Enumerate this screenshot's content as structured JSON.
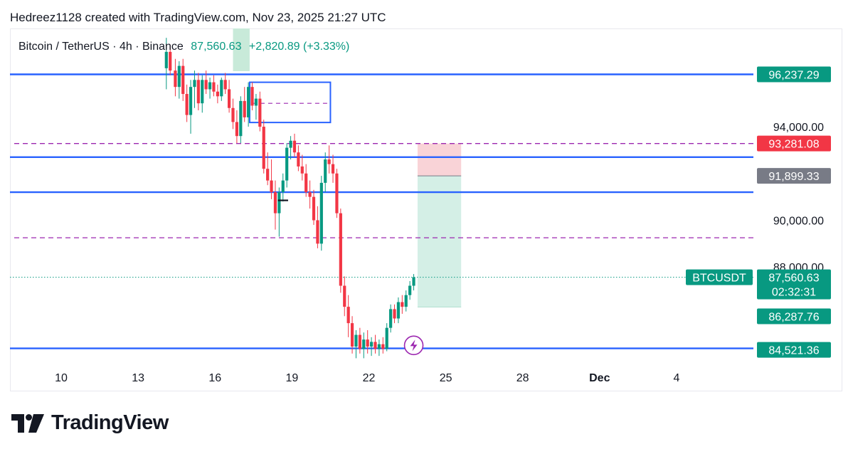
{
  "header": {
    "attribution": "Hedreez1128 created with TradingView.com, Nov 23, 2025 21:27 UTC"
  },
  "legend": {
    "symbol": "Bitcoin / TetherUS · 4h · Binance",
    "last_price": "87,560.63",
    "change": "+2,820.89 (+3.33%)"
  },
  "footer": {
    "brand": "TradingView"
  },
  "colors": {
    "up": "#089981",
    "down": "#f23645",
    "level_line": "#2962ff",
    "dashed_line": "#9c27b0",
    "stop_zone": "#f9d3d7",
    "target_zone": "#d4efe6",
    "highlight": "#c8ead9"
  },
  "chart_data": {
    "type": "candlestick",
    "symbol": "BTCUSDT",
    "interval": "4h",
    "exchange": "Binance",
    "x_axis": {
      "ticks": [
        "10",
        "13",
        "16",
        "19",
        "22",
        "25",
        "28",
        "Dec",
        "4"
      ],
      "start_day": 8,
      "end_day": 37
    },
    "y_axis": {
      "range": [
        83900,
        98200
      ],
      "ticks": [
        "94,000.00",
        "90,000.00",
        "88,000.00"
      ],
      "labels": [
        {
          "text": "96,237.29",
          "value": 96237.29,
          "kind": "level"
        },
        {
          "text": "93,281.08",
          "value": 93281.08,
          "kind": "stop"
        },
        {
          "text": "91,899.33",
          "value": 91899.33,
          "kind": "entry"
        },
        {
          "text": "BTCUSDT",
          "value": 87560.63,
          "kind": "symbol"
        },
        {
          "text": "87,560.63",
          "value": 87560.63,
          "kind": "last"
        },
        {
          "text": "02:32:31",
          "value": 87560.63,
          "kind": "countdown"
        },
        {
          "text": "86,287.76",
          "value": 86287.76,
          "kind": "target"
        },
        {
          "text": "84,521.36",
          "value": 84521.36,
          "kind": "level"
        }
      ]
    },
    "horizontal_levels": [
      96237.29,
      92700,
      91200,
      84521.36
    ],
    "dashed_levels": [
      93281.08,
      89250
    ],
    "zone_box": {
      "day_start": 17.35,
      "day_end": 20.5,
      "price_top": 95900,
      "price_bottom": 94180
    },
    "zone_midline": 95000,
    "position_tool": {
      "day_start": 23.9,
      "day_end": 25.6,
      "stop": 93281.08,
      "entry": 91899.33,
      "target": 86287.76
    },
    "highlight_column": {
      "day_start": 16.7,
      "day_end": 17.35
    },
    "last_price_line": 87560.63,
    "candles": [
      [
        14.1,
        96500,
        97800,
        95600,
        97200
      ],
      [
        14.25,
        97200,
        97500,
        96200,
        96400
      ],
      [
        14.45,
        96400,
        96900,
        95300,
        95700
      ],
      [
        14.6,
        95700,
        96800,
        95200,
        96600
      ],
      [
        14.75,
        96600,
        96900,
        95100,
        95400
      ],
      [
        14.9,
        95400,
        95800,
        94200,
        94500
      ],
      [
        15.05,
        94500,
        96000,
        93700,
        95700
      ],
      [
        15.2,
        95700,
        96400,
        94800,
        96000
      ],
      [
        15.35,
        96000,
        96300,
        94700,
        95000
      ],
      [
        15.5,
        95000,
        96200,
        94600,
        96000
      ],
      [
        15.65,
        96000,
        96400,
        95400,
        95600
      ],
      [
        15.8,
        95600,
        96100,
        95200,
        95900
      ],
      [
        15.95,
        95900,
        96200,
        95300,
        95500
      ],
      [
        16.1,
        95500,
        95800,
        95000,
        95300
      ],
      [
        16.25,
        95300,
        96100,
        95100,
        96000
      ],
      [
        16.4,
        96000,
        96300,
        95400,
        95600
      ],
      [
        16.55,
        95600,
        96000,
        94600,
        94800
      ],
      [
        16.7,
        94800,
        95200,
        93900,
        94200
      ],
      [
        16.85,
        94200,
        94700,
        93300,
        93600
      ],
      [
        17.0,
        93600,
        95300,
        93300,
        95100
      ],
      [
        17.15,
        95100,
        95700,
        94200,
        94400
      ],
      [
        17.3,
        94400,
        95900,
        94000,
        95700
      ],
      [
        17.45,
        95700,
        95900,
        94700,
        94900
      ],
      [
        17.6,
        94900,
        95400,
        94300,
        95200
      ],
      [
        17.75,
        95200,
        95500,
        93800,
        94000
      ],
      [
        17.9,
        94000,
        94300,
        92000,
        92200
      ],
      [
        18.05,
        92200,
        92900,
        91500,
        91700
      ],
      [
        18.2,
        91700,
        92600,
        90900,
        91200
      ],
      [
        18.35,
        91200,
        91700,
        89600,
        90300
      ],
      [
        18.5,
        90300,
        91400,
        89300,
        91200
      ],
      [
        18.65,
        91200,
        92000,
        90800,
        91700
      ],
      [
        18.8,
        91700,
        93300,
        91400,
        93100
      ],
      [
        18.95,
        93100,
        93600,
        92600,
        93400
      ],
      [
        19.1,
        93400,
        93700,
        92700,
        92900
      ],
      [
        19.25,
        92900,
        93200,
        92100,
        92300
      ],
      [
        19.4,
        92300,
        92800,
        91700,
        92000
      ],
      [
        19.55,
        92000,
        92400,
        91000,
        91200
      ],
      [
        19.7,
        91200,
        91700,
        90500,
        91000
      ],
      [
        19.85,
        91000,
        91300,
        89800,
        90000
      ],
      [
        20.0,
        90000,
        90600,
        88800,
        89000
      ],
      [
        20.15,
        89000,
        91900,
        88700,
        91600
      ],
      [
        20.3,
        91600,
        92900,
        91200,
        92600
      ],
      [
        20.45,
        92600,
        93200,
        92000,
        92400
      ],
      [
        20.6,
        92400,
        92800,
        91600,
        92000
      ],
      [
        20.75,
        92000,
        92200,
        90100,
        90300
      ],
      [
        20.9,
        90300,
        90500,
        86900,
        87200
      ],
      [
        21.05,
        87200,
        87600,
        85900,
        86300
      ],
      [
        21.2,
        86300,
        86800,
        85000,
        85600
      ],
      [
        21.35,
        85600,
        85900,
        84300,
        84600
      ],
      [
        21.5,
        84600,
        85300,
        84100,
        85100
      ],
      [
        21.65,
        85100,
        85400,
        84300,
        84500
      ],
      [
        21.8,
        84500,
        85200,
        84100,
        84900
      ],
      [
        21.95,
        84900,
        85300,
        84300,
        84600
      ],
      [
        22.1,
        84600,
        85000,
        84200,
        84800
      ],
      [
        22.25,
        84800,
        85100,
        84300,
        84500
      ],
      [
        22.4,
        84500,
        84900,
        84200,
        84700
      ],
      [
        22.55,
        84700,
        85000,
        84300,
        84500
      ],
      [
        22.7,
        84500,
        85600,
        84400,
        85400
      ],
      [
        22.85,
        85400,
        86400,
        85200,
        86200
      ],
      [
        23.0,
        86200,
        86400,
        85600,
        85800
      ],
      [
        23.15,
        85800,
        86700,
        85600,
        86500
      ],
      [
        23.3,
        86500,
        86800,
        86000,
        86300
      ],
      [
        23.45,
        86300,
        87000,
        86100,
        86800
      ],
      [
        23.6,
        86800,
        87400,
        86600,
        87200
      ],
      [
        23.75,
        87200,
        87700,
        87000,
        87560.63
      ]
    ]
  }
}
